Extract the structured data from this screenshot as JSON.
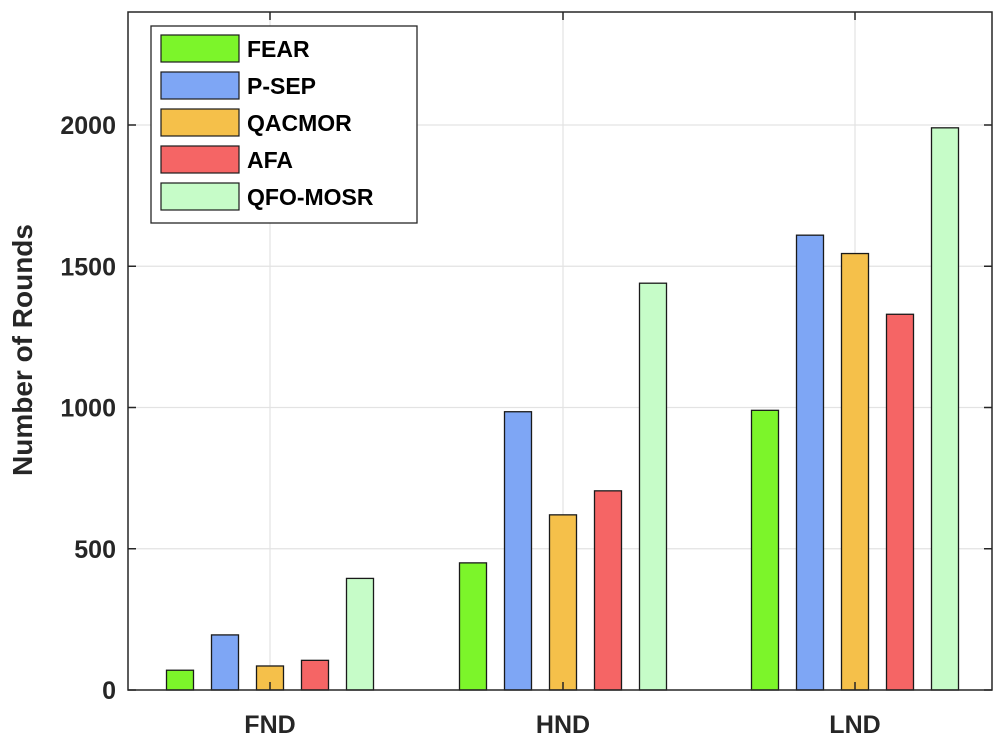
{
  "chart_data": {
    "type": "bar",
    "categories": [
      "FND",
      "HND",
      "LND"
    ],
    "series": [
      {
        "name": "FEAR",
        "values": [
          70,
          450,
          990
        ],
        "color": "#7cf52a"
      },
      {
        "name": "P-SEP",
        "values": [
          195,
          985,
          1610
        ],
        "color": "#7ea6f5"
      },
      {
        "name": "QACMOR",
        "values": [
          85,
          620,
          1545
        ],
        "color": "#f5c04a"
      },
      {
        "name": "AFA",
        "values": [
          105,
          705,
          1330
        ],
        "color": "#f56565"
      },
      {
        "name": "QFO-MOSR",
        "values": [
          395,
          1440,
          1990
        ],
        "color": "#c6fcc8"
      }
    ],
    "title": "",
    "xlabel": "",
    "ylabel": "Number of Rounds",
    "ylim": [
      0,
      2400
    ],
    "yticks": [
      0,
      500,
      1000,
      1500,
      2000
    ],
    "grid": true,
    "legend_position": "top-left"
  }
}
